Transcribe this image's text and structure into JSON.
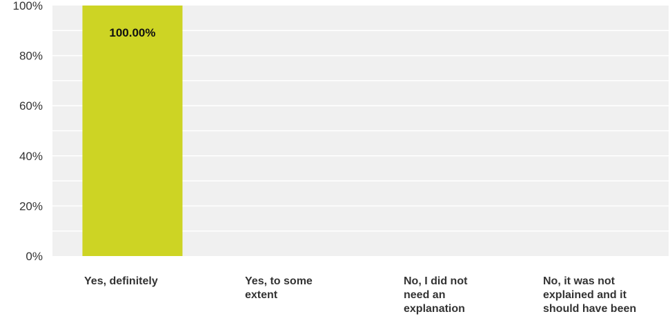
{
  "chart_data": {
    "type": "bar",
    "categories": [
      [
        "Yes, definitely"
      ],
      [
        "Yes, to some",
        "extent"
      ],
      [
        "No, I did not",
        "need an",
        "explanation"
      ],
      [
        "No, it was not",
        "explained and it",
        "should have been"
      ]
    ],
    "values": [
      100,
      0,
      0,
      0
    ],
    "data_labels": [
      "100.00%",
      "",
      "",
      ""
    ],
    "y_ticks": [
      "0%",
      "20%",
      "40%",
      "60%",
      "80%",
      "100%"
    ],
    "ylim": [
      0,
      100
    ],
    "grid": true,
    "colors": {
      "bar": "#cdd424",
      "plot_background": "#f0f0f0",
      "gridline": "#ffffff"
    }
  }
}
